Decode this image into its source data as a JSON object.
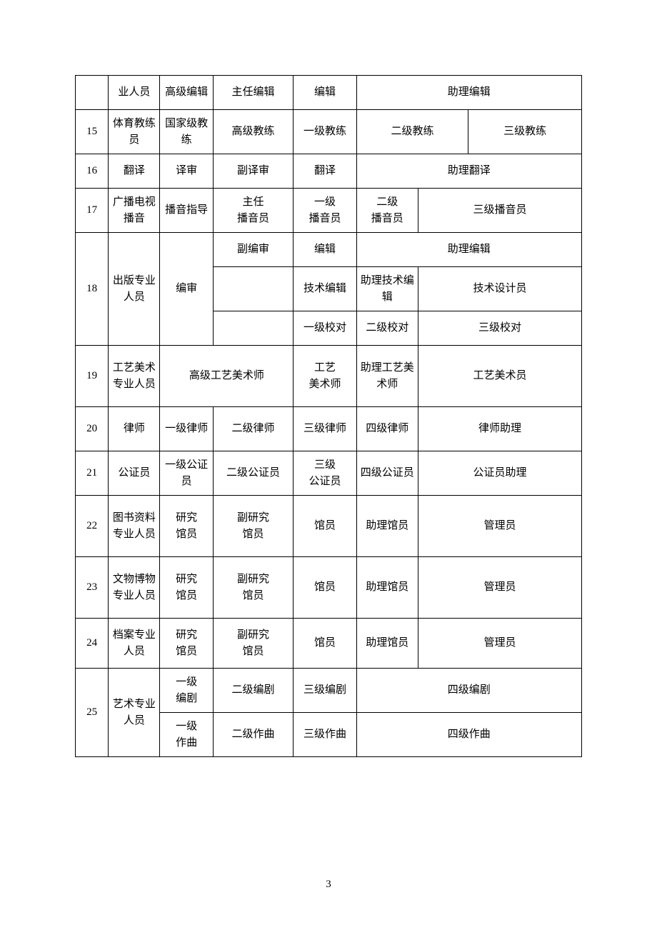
{
  "table": {
    "border_color": "#000000",
    "background_color": "#ffffff",
    "font_size": 15,
    "columns": [
      {
        "name": "num",
        "width": 46
      },
      {
        "name": "category",
        "width": 72
      },
      {
        "name": "level1",
        "width": 74
      },
      {
        "name": "level2",
        "width": 112
      },
      {
        "name": "level3",
        "width": 88
      },
      {
        "name": "level4",
        "width": 86
      },
      {
        "name": "level5",
        "width": 70
      },
      {
        "name": "level6",
        "width": 158
      }
    ],
    "rows": [
      {
        "num": "",
        "cells": [
          "业人员",
          "高级编辑",
          "主任编辑",
          "编辑",
          "助理编辑"
        ],
        "spans": [
          1,
          1,
          1,
          1,
          3
        ]
      },
      {
        "num": "15",
        "cells": [
          "体育教练员",
          "国家级教练",
          "高级教练",
          "一级教练",
          "二级教练",
          "三级教练"
        ],
        "spans": [
          1,
          1,
          1,
          1,
          2,
          1
        ]
      },
      {
        "num": "16",
        "cells": [
          "翻译",
          "译审",
          "副译审",
          "翻译",
          "助理翻译"
        ],
        "spans": [
          1,
          1,
          1,
          1,
          3
        ]
      },
      {
        "num": "17",
        "cells": [
          "广播电视播音",
          "播音指导",
          "主任\n播音员",
          "一级\n播音员",
          "二级\n播音员",
          "三级播音员"
        ],
        "spans": [
          1,
          1,
          1,
          1,
          1,
          2
        ]
      },
      {
        "num": "18",
        "category": "出版专业人员",
        "level1": "编审",
        "subrows": [
          {
            "cells": [
              "副编审",
              "编辑",
              "助理编辑"
            ],
            "spans": [
              1,
              1,
              3
            ]
          },
          {
            "cells": [
              "",
              "技术编辑",
              "助理技术编辑",
              "技术设计员"
            ],
            "spans": [
              1,
              1,
              1,
              2
            ]
          },
          {
            "cells": [
              "",
              "一级校对",
              "二级校对",
              "三级校对"
            ],
            "spans": [
              1,
              1,
              1,
              2
            ]
          }
        ]
      },
      {
        "num": "19",
        "cells": [
          "工艺美术专业人员",
          "高级工艺美术师",
          "工艺\n美术师",
          "助理工艺美术师",
          "工艺美术员"
        ],
        "spans": [
          1,
          2,
          1,
          1,
          2
        ]
      },
      {
        "num": "20",
        "cells": [
          "律师",
          "一级律师",
          "二级律师",
          "三级律师",
          "四级律师",
          "律师助理"
        ],
        "spans": [
          1,
          1,
          1,
          1,
          1,
          2
        ]
      },
      {
        "num": "21",
        "cells": [
          "公证员",
          "一级公证员",
          "二级公证员",
          "三级\n公证员",
          "四级公证员",
          "公证员助理"
        ],
        "spans": [
          1,
          1,
          1,
          1,
          1,
          2
        ]
      },
      {
        "num": "22",
        "cells": [
          "图书资料专业人员",
          "研究\n馆员",
          "副研究\n馆员",
          "馆员",
          "助理馆员",
          "管理员"
        ],
        "spans": [
          1,
          1,
          1,
          1,
          1,
          2
        ]
      },
      {
        "num": "23",
        "cells": [
          "文物博物专业人员",
          "研究\n馆员",
          "副研究\n馆员",
          "馆员",
          "助理馆员",
          "管理员"
        ],
        "spans": [
          1,
          1,
          1,
          1,
          1,
          2
        ]
      },
      {
        "num": "24",
        "cells": [
          "档案专业人员",
          "研究\n馆员",
          "副研究\n馆员",
          "馆员",
          "助理馆员",
          "管理员"
        ],
        "spans": [
          1,
          1,
          1,
          1,
          1,
          2
        ]
      },
      {
        "num": "25",
        "category": "艺术专业人员",
        "subrows": [
          {
            "cells": [
              "一级\n编剧",
              "二级编剧",
              "三级编剧",
              "四级编剧"
            ],
            "spans": [
              1,
              1,
              1,
              3
            ]
          },
          {
            "cells": [
              "一级\n作曲",
              "二级作曲",
              "三级作曲",
              "四级作曲"
            ],
            "spans": [
              1,
              1,
              1,
              3
            ]
          }
        ]
      }
    ]
  },
  "page_number": "3"
}
